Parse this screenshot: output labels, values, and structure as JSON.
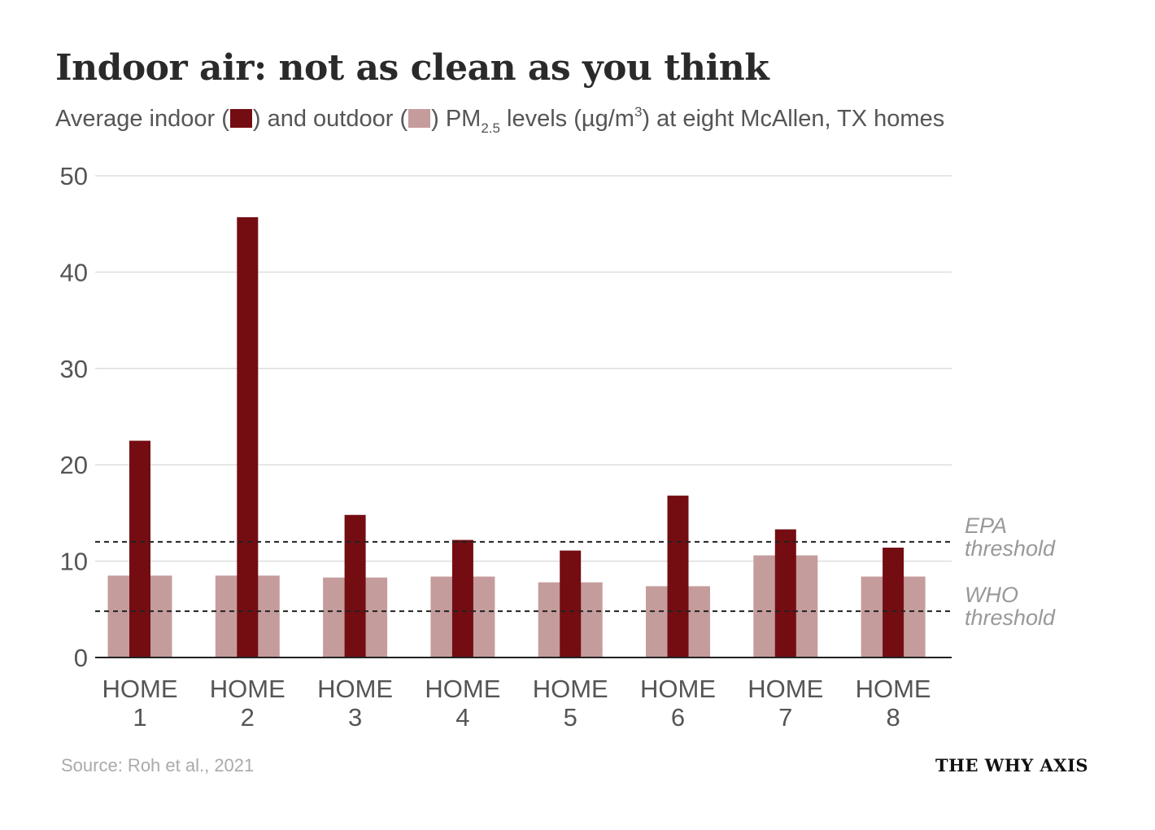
{
  "colors": {
    "indoor": "#740d12",
    "outdoor": "#c59c9c",
    "grid": "#dddddd",
    "axis": "#222222",
    "tick_text": "#555555",
    "threshold_text": "#999999"
  },
  "header": {
    "title": "Indoor air: not as clean as you think",
    "subtitle_part1": "Average indoor (",
    "subtitle_part2": ") and outdoor (",
    "subtitle_part3": ") PM",
    "subtitle_sub": "2.5",
    "subtitle_part4": " levels (µg/m",
    "subtitle_sup": "3",
    "subtitle_part5": ") at eight McAllen, TX homes"
  },
  "footer": {
    "source": "Source: Roh et al., 2021",
    "brand": "THE WHY AXIS"
  },
  "chart_data": {
    "type": "bar",
    "categories": [
      [
        "HOME",
        "1"
      ],
      [
        "HOME",
        "2"
      ],
      [
        "HOME",
        "3"
      ],
      [
        "HOME",
        "4"
      ],
      [
        "HOME",
        "5"
      ],
      [
        "HOME",
        "6"
      ],
      [
        "HOME",
        "7"
      ],
      [
        "HOME",
        "8"
      ]
    ],
    "series": [
      {
        "key": "outdoor",
        "values": [
          8.5,
          8.5,
          8.3,
          8.4,
          7.8,
          7.4,
          10.6,
          8.4
        ]
      },
      {
        "key": "indoor",
        "values": [
          22.5,
          45.7,
          14.8,
          12.2,
          11.1,
          16.8,
          13.3,
          11.4
        ]
      }
    ],
    "ylim": [
      0,
      50
    ],
    "yticks": [
      0,
      10,
      20,
      30,
      40,
      50
    ],
    "grid": true,
    "thresholds": [
      {
        "label": [
          "EPA",
          "threshold"
        ],
        "value": 12
      },
      {
        "label": [
          "WHO",
          "threshold"
        ],
        "value": 4.8
      }
    ]
  }
}
